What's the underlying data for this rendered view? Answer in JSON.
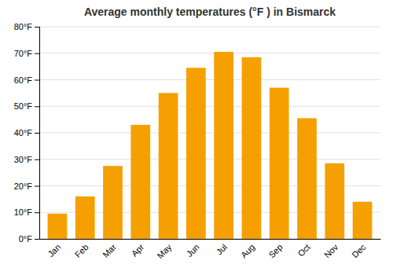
{
  "chart_data": {
    "type": "bar",
    "title": "Average monthly temperatures (°F ) in Bismarck",
    "categories": [
      "Jan",
      "Feb",
      "Mar",
      "Apr",
      "May",
      "Jun",
      "Jul",
      "Aug",
      "Sep",
      "Oct",
      "Nov",
      "Dec"
    ],
    "values": [
      9.5,
      16.0,
      27.5,
      43.0,
      55.0,
      64.5,
      70.5,
      68.5,
      57.0,
      45.5,
      28.5,
      14.0
    ],
    "color": "#F5A000",
    "ylim": [
      0,
      80
    ],
    "yticks": [
      {
        "value": 0,
        "label": "0°F"
      },
      {
        "value": 10,
        "label": "10°F"
      },
      {
        "value": 20,
        "label": "20°F"
      },
      {
        "value": 30,
        "label": "30°F"
      },
      {
        "value": 40,
        "label": "40°F"
      },
      {
        "value": 50,
        "label": "50°F"
      },
      {
        "value": 60,
        "label": "60°F"
      },
      {
        "value": 70,
        "label": "70°F"
      },
      {
        "value": 80,
        "label": "80°F"
      }
    ],
    "grid": true
  }
}
